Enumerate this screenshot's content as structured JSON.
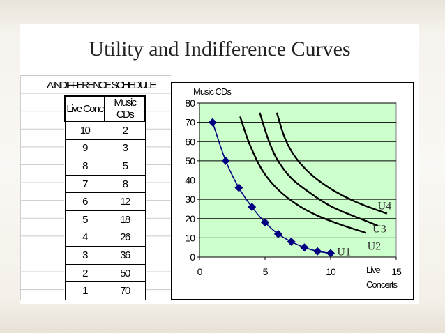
{
  "slide_title": "Utility and Indifference Curves",
  "schedule": {
    "title": "A INDIFFERENCE SCHEDULE",
    "headers": [
      "Live Conc",
      "Music CDs"
    ],
    "rows": [
      [
        "10",
        "2"
      ],
      [
        "9",
        "3"
      ],
      [
        "8",
        "5"
      ],
      [
        "7",
        "8"
      ],
      [
        "6",
        "12"
      ],
      [
        "5",
        "18"
      ],
      [
        "4",
        "26"
      ],
      [
        "3",
        "36"
      ],
      [
        "2",
        "50"
      ],
      [
        "1",
        "70"
      ]
    ]
  },
  "colors": {
    "plot_bg": "#ccffcc",
    "marker": "#000080",
    "curve": "#000000"
  },
  "chart_data": {
    "type": "line",
    "ylabel": "Music CDs",
    "xlabel": "Live Concerts",
    "xlim": [
      0,
      15
    ],
    "ylim": [
      0,
      80
    ],
    "x_ticks": [
      "0",
      "5",
      "10",
      "15"
    ],
    "y_ticks": [
      "0",
      "10",
      "20",
      "30",
      "40",
      "50",
      "60",
      "70",
      "80"
    ],
    "grid": "horizontal",
    "series": [
      {
        "name": "U1",
        "marker": "diamond",
        "x": [
          1,
          2,
          3,
          4,
          5,
          6,
          7,
          8,
          9,
          10
        ],
        "y": [
          70,
          50,
          36,
          26,
          18,
          12,
          8,
          5,
          3,
          2
        ]
      },
      {
        "name": "U2",
        "x": [
          3.1,
          3.8,
          4.8,
          6,
          7.5,
          9,
          10.8,
          12.7
        ],
        "y": [
          73,
          59,
          45,
          35,
          27,
          21.5,
          16.8,
          12.6
        ]
      },
      {
        "name": "U3",
        "x": [
          4.6,
          5.2,
          5.9,
          7,
          8.5,
          10,
          11.5,
          12.8,
          13.6
        ],
        "y": [
          75,
          62,
          51,
          41,
          33,
          26.5,
          22,
          18.5,
          16.3
        ]
      },
      {
        "name": "U4",
        "x": [
          5.9,
          6.5,
          7.3,
          8.5,
          10,
          11.5,
          12.9,
          14.3
        ],
        "y": [
          75,
          62,
          52,
          43,
          35.5,
          30,
          26,
          22.6
        ]
      }
    ],
    "curve_labels": [
      {
        "text": "U1",
        "x": 10.5,
        "y": 3
      },
      {
        "text": "U2",
        "x": 12.8,
        "y": 6
      },
      {
        "text": "U3",
        "x": 13.2,
        "y": 15
      },
      {
        "text": "U4",
        "x": 13.6,
        "y": 27
      }
    ]
  }
}
